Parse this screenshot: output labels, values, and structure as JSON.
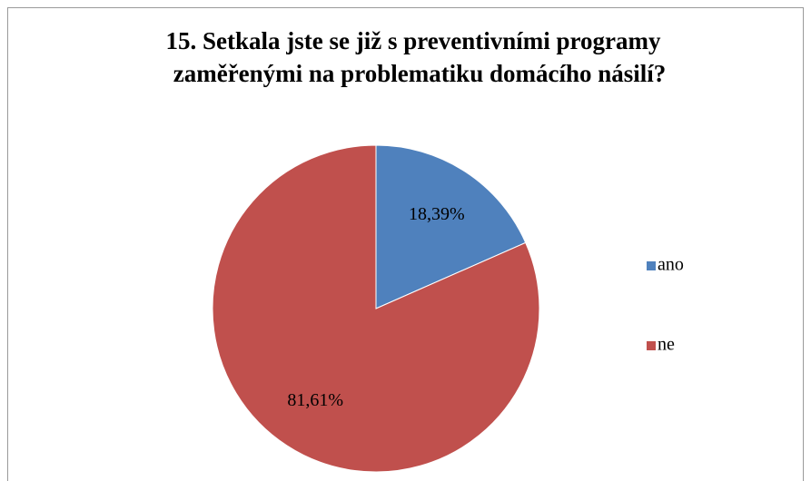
{
  "chart_data": {
    "type": "pie",
    "title": [
      "15. Setkala jste se již  s preventivními  programy",
      "zaměřenými  na problematiku  domácího  násilí?"
    ],
    "categories": [
      "ano",
      "ne"
    ],
    "values": [
      18.39,
      81.61
    ],
    "value_labels": [
      "18,39%",
      "81,61%"
    ],
    "colors": [
      "#4f81bd",
      "#c0504d"
    ],
    "legend": "right"
  }
}
